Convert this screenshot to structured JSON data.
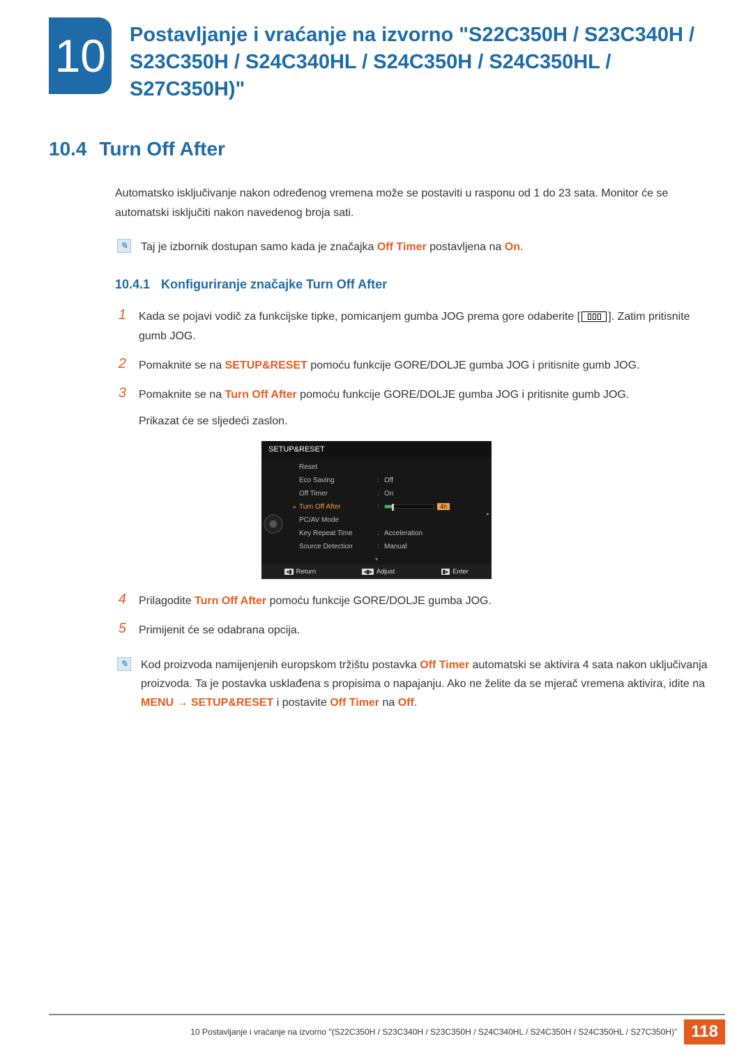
{
  "chapter": {
    "number": "10",
    "title": "Postavljanje i vraćanje na izvorno \"S22C350H / S23C340H / S23C350H / S24C340HL / S24C350H / S24C350HL / S27C350H)\""
  },
  "section": {
    "number": "10.4",
    "title": "Turn Off After"
  },
  "intro": "Automatsko isključivanje nakon određenog vremena može se postaviti u rasponu od 1 do 23 sata. Monitor će se automatski isključiti nakon navedenog broja sati.",
  "note1": {
    "pre": "Taj je izbornik dostupan samo kada je značajka ",
    "hl1": "Off Timer",
    "mid": " postavljena na ",
    "hl2": "On",
    "post": "."
  },
  "subsection": {
    "number": "10.4.1",
    "title": "Konfiguriranje značajke Turn Off After"
  },
  "steps": {
    "s1a": "Kada se pojavi vodič za funkcijske tipke, pomicanjem gumba JOG prema gore odaberite [",
    "s1b": "]. Zatim pritisnite gumb JOG.",
    "s2a": "Pomaknite se na ",
    "s2hl": "SETUP&RESET",
    "s2b": " pomoću funkcije GORE/DOLJE gumba JOG i pritisnite gumb JOG.",
    "s3a": "Pomaknite se na ",
    "s3hl": "Turn Off After",
    "s3b": " pomoću funkcije GORE/DOLJE gumba JOG i pritisnite gumb JOG.",
    "s3c": "Prikazat će se sljedeći zaslon.",
    "s4a": "Prilagodite ",
    "s4hl": "Turn Off After",
    "s4b": " pomoću funkcije GORE/DOLJE gumba JOG.",
    "s5": "Primijenit će se odabrana opcija."
  },
  "osd": {
    "title": "SETUP&RESET",
    "rows": [
      {
        "label": "Reset",
        "value": "",
        "active": false
      },
      {
        "label": "Eco Saving",
        "value": "Off",
        "active": false
      },
      {
        "label": "Off Timer",
        "value": "On",
        "active": false
      },
      {
        "label": "Turn Off After",
        "value": "",
        "active": true,
        "slider": true,
        "slider_value": "4h",
        "slider_fill_pct": 15
      },
      {
        "label": "PC/AV Mode",
        "value": "",
        "active": false
      },
      {
        "label": "Key Repeat Time",
        "value": "Acceleration",
        "active": false
      },
      {
        "label": "Source Detection",
        "value": "Manual",
        "active": false
      }
    ],
    "footer": {
      "return": "Return",
      "adjust": "Adjust",
      "enter": "Enter"
    },
    "colors": {
      "bg": "#171717",
      "active": "#f2a341",
      "slider_fill": "#3b6"
    }
  },
  "note2": {
    "t1": "Kod proizvoda namijenjenih europskom tržištu postavka ",
    "h1": "Off Timer",
    "t2": " automatski se aktivira 4 sata nakon uključivanja proizvoda. Ta je postavka usklađena s propisima o napajanju. Ako ne želite da se mjerač vremena aktivira, idite na ",
    "h2": "MENU",
    "arrow": "  →  ",
    "h3": "SETUP&RESET",
    "t3": " i postavite ",
    "h4": "Off Timer",
    "t4": " na ",
    "h5": "Off",
    "t5": "."
  },
  "footer": {
    "text": "10 Postavljanje i vraćanje na izvorno \"(S22C350H / S23C340H / S23C350H / S24C340HL / S24C350H / S24C350HL / S27C350H)\"",
    "page": "118"
  }
}
